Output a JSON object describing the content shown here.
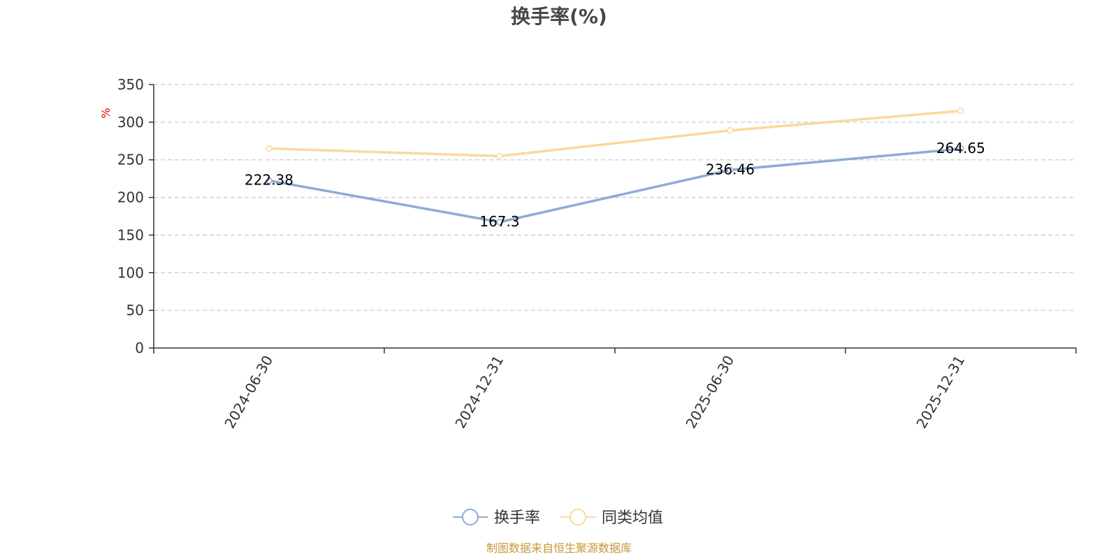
{
  "title": "换手率(%)",
  "source": "制图数据来自恒生聚源数据库",
  "y_unit": "%",
  "colors": {
    "series_main": "#8eaad8",
    "series_avg": "#fcd99a",
    "grid": "#cccccc",
    "axis": "#333333",
    "source": "#c8963c",
    "unit": "#e00000"
  },
  "legend": [
    {
      "name": "换手率",
      "color": "#8eaad8"
    },
    {
      "name": "同类均值",
      "color": "#fcd99a"
    }
  ],
  "chart_data": {
    "type": "line",
    "title": "换手率(%)",
    "categories": [
      "2024-06-30",
      "2024-12-31",
      "2025-06-30",
      "2025-12-31"
    ],
    "ylabel": "%",
    "ylim": [
      0,
      350
    ],
    "yticks": [
      0,
      50,
      100,
      150,
      200,
      250,
      300,
      350
    ],
    "grid": true,
    "legend_position": "bottom",
    "series": [
      {
        "name": "换手率",
        "values": [
          222.38,
          167.3,
          236.46,
          264.65
        ],
        "labels": [
          "222.38",
          "167.3",
          "236.46",
          "264.65"
        ],
        "show_labels": true
      },
      {
        "name": "同类均值",
        "values": [
          265,
          255,
          289,
          315
        ],
        "show_labels": false
      }
    ]
  }
}
